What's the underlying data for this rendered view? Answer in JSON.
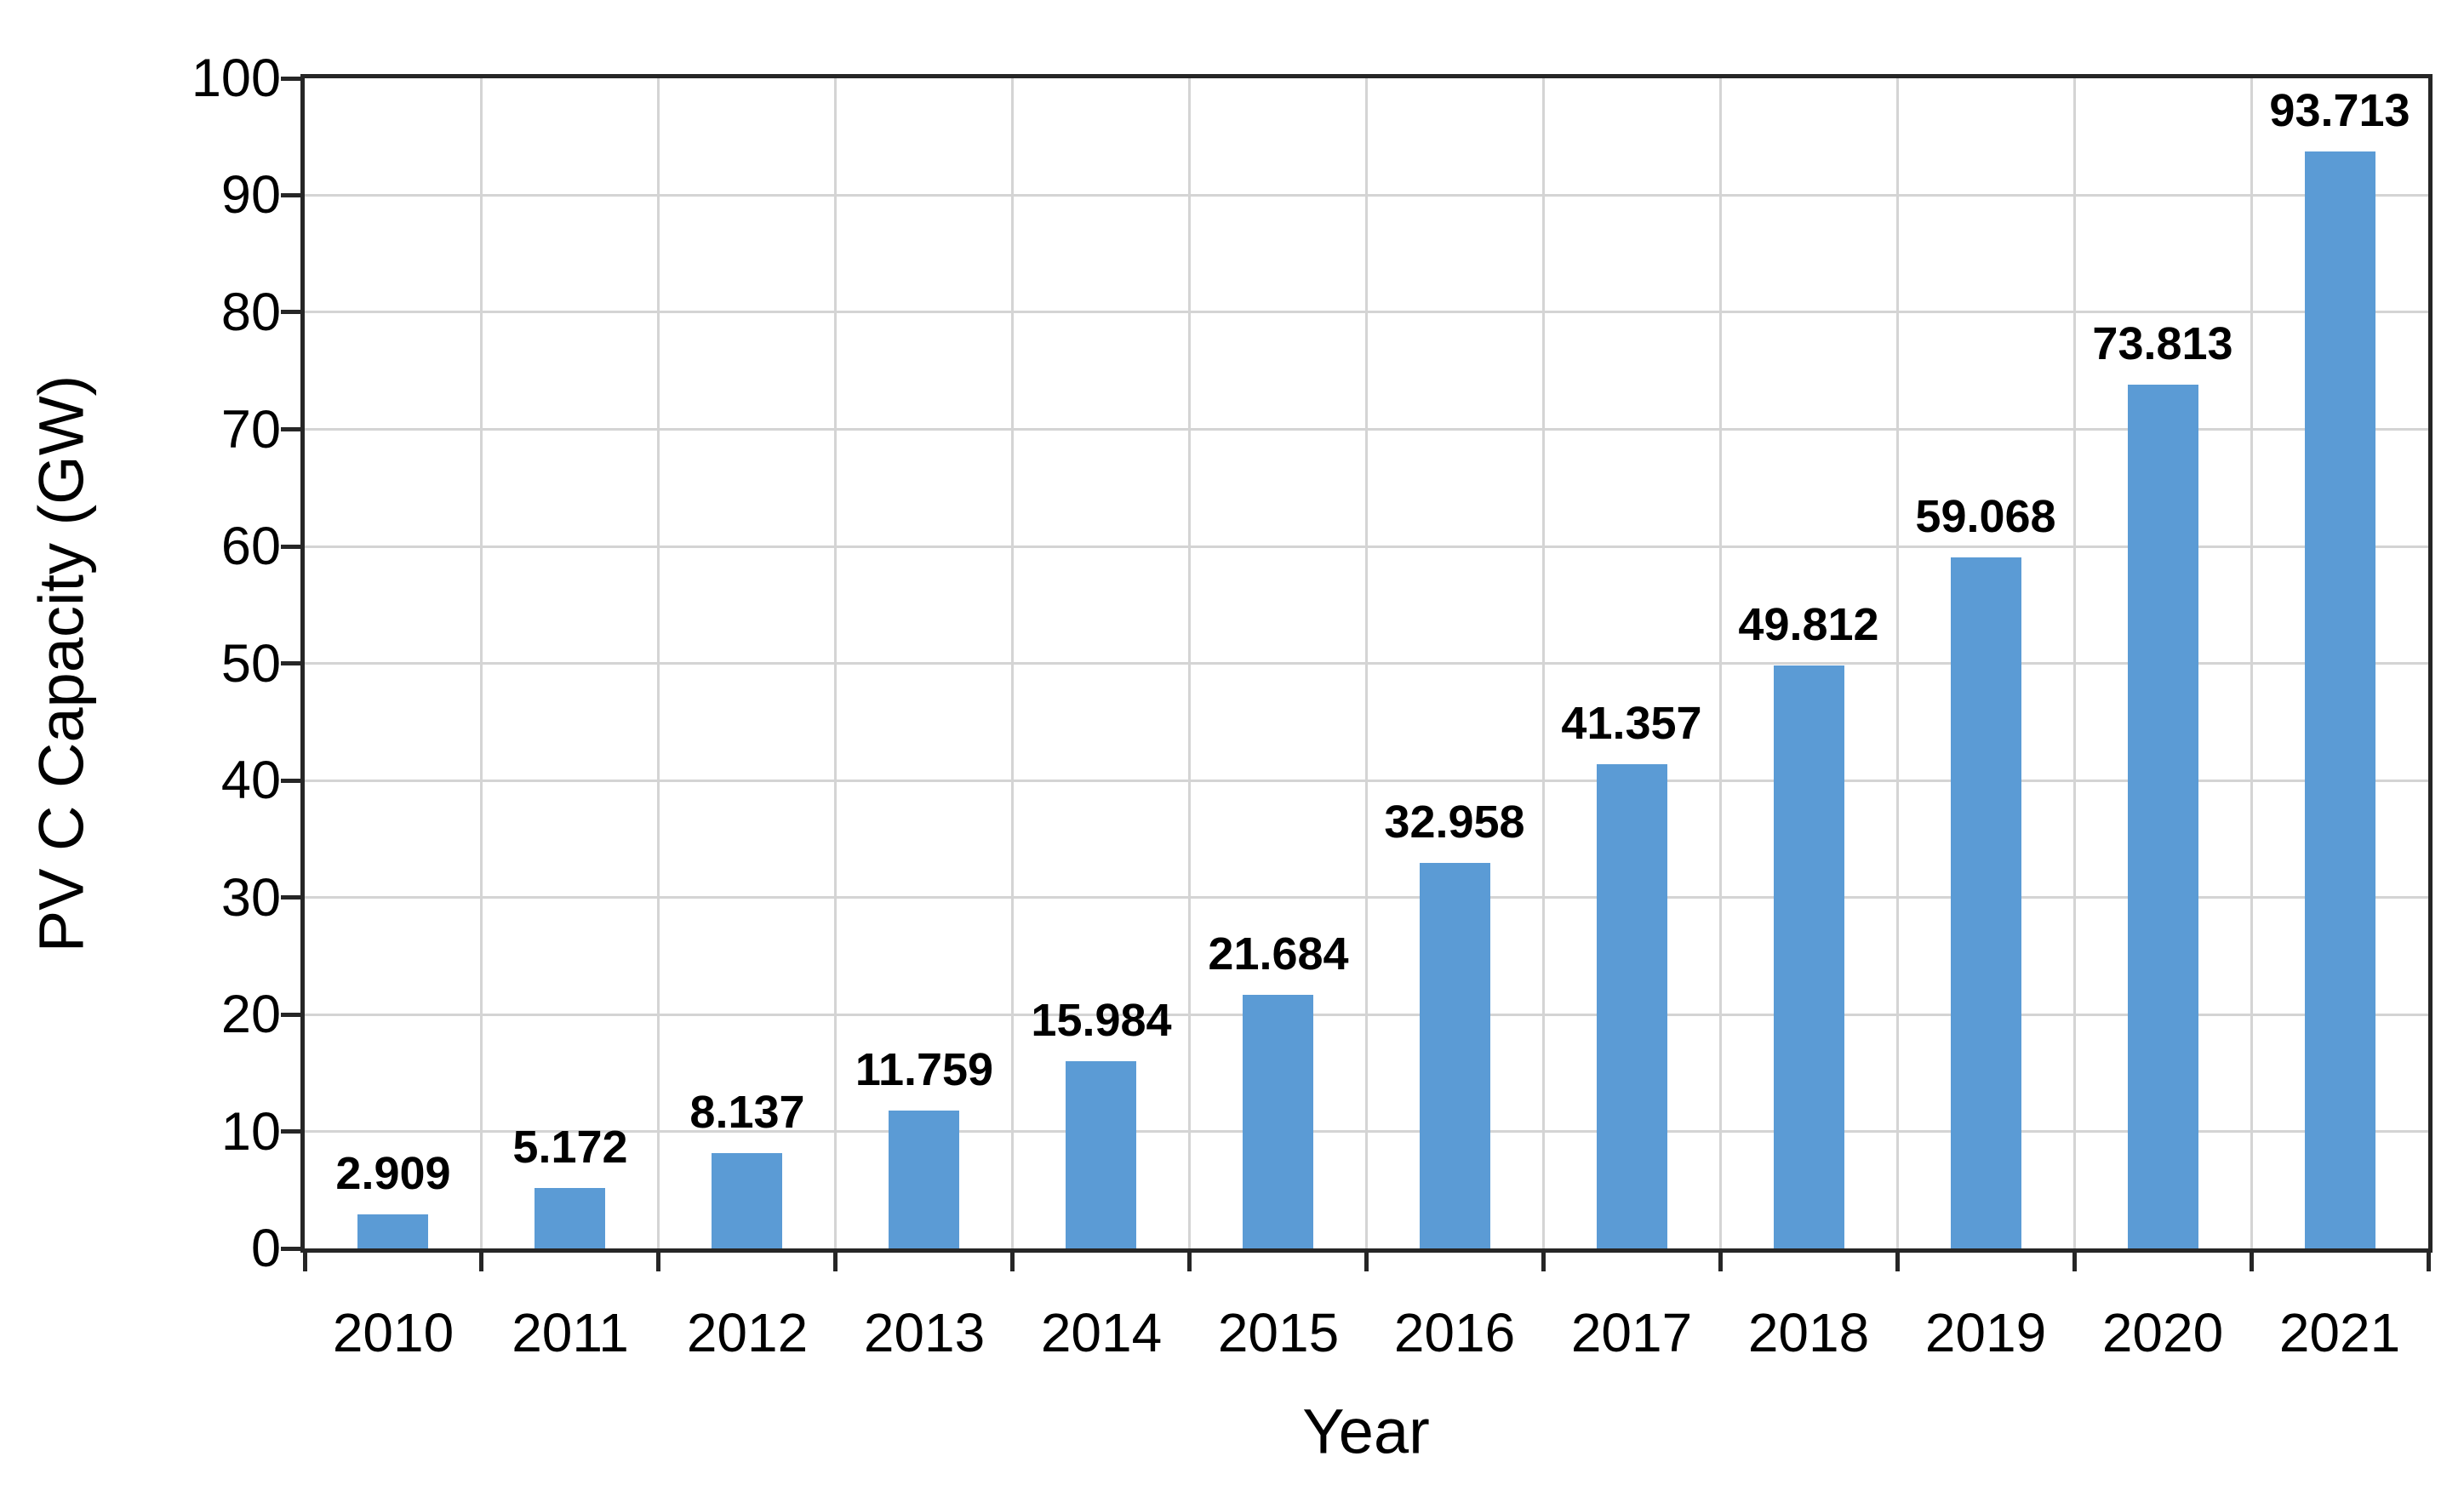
{
  "chart_data": {
    "type": "bar",
    "title": "",
    "xlabel": "Year",
    "ylabel": "PV C Capacity (GW)",
    "categories": [
      "2010",
      "2011",
      "2012",
      "2013",
      "2014",
      "2015",
      "2016",
      "2017",
      "2018",
      "2019",
      "2020",
      "2021"
    ],
    "values": [
      2.909,
      5.172,
      8.137,
      11.759,
      15.984,
      21.684,
      32.958,
      41.357,
      49.812,
      59.068,
      73.813,
      93.713
    ],
    "value_labels": [
      "2.909",
      "5.172",
      "8.137",
      "11.759",
      "15.984",
      "21.684",
      "32.958",
      "41.357",
      "49.812",
      "59.068",
      "73.813",
      "93.713"
    ],
    "ylim": [
      0,
      100
    ],
    "yticks": [
      0,
      10,
      20,
      30,
      40,
      50,
      60,
      70,
      80,
      90,
      100
    ],
    "grid": "horizontal and vertical gridlines",
    "legend": "none",
    "colors": {
      "bar": "#5B9BD5",
      "gridline": "#D4D4D4",
      "axis": "#262626",
      "text": "#000000",
      "background": "#FFFFFF"
    }
  }
}
